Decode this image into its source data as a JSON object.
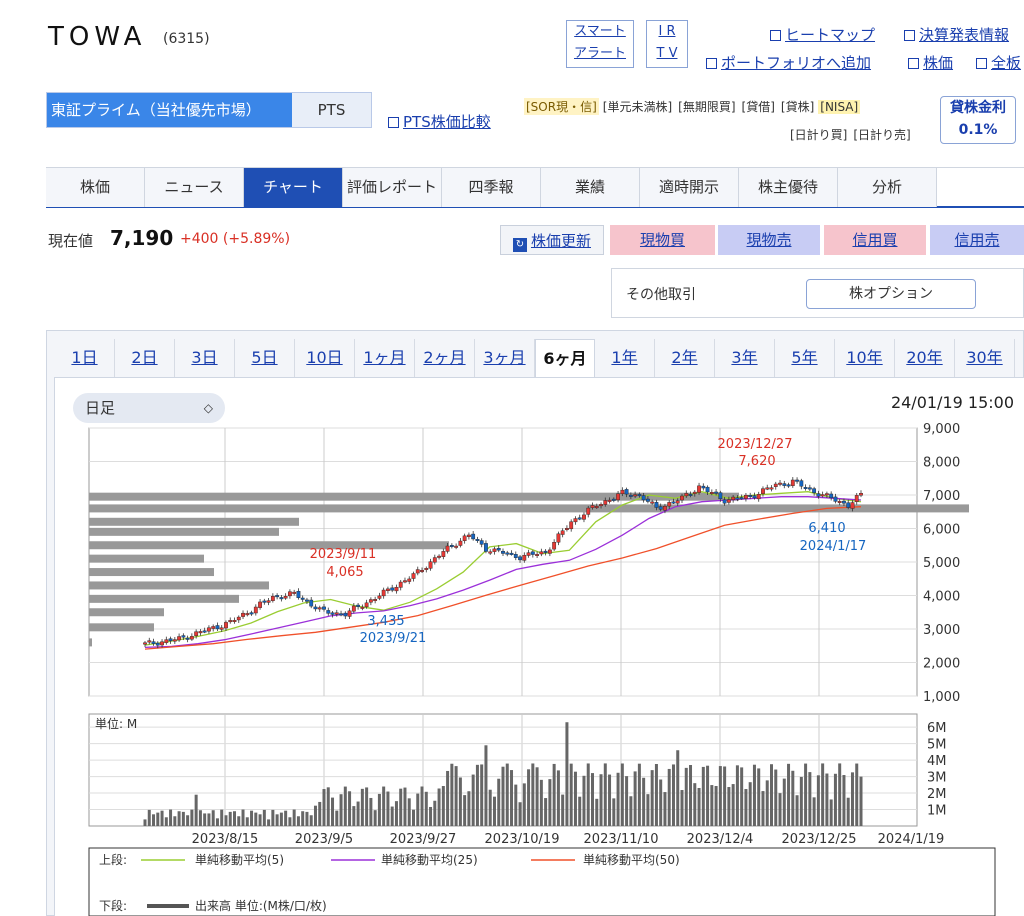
{
  "stock": {
    "name": "TOWA",
    "code": "(6315)"
  },
  "alert": {
    "line1": "スマート",
    "line2": "アラート"
  },
  "irtv": {
    "line1": "I R",
    "line2": "T V"
  },
  "top_links": {
    "heatmap": "ヒートマップ",
    "earnings": "決算発表情報",
    "portfolio": "ポートフォリオへ追加",
    "price": "株価",
    "all": "全板"
  },
  "market_tabs": {
    "primary": "東証プライム（当社優先市場）",
    "pts": "PTS"
  },
  "pts_compare": "PTS株価比較",
  "tags_row1": [
    "[SOR現・信]",
    "[単元未満株]",
    "[無期限買]",
    "[貸借]",
    "[貸株]",
    "[NISA]"
  ],
  "tags_row2": [
    "[日計り買]",
    "[日計り売]"
  ],
  "lend_rate": {
    "label": "貸株金利",
    "value": "0.1%"
  },
  "nav": [
    "株価",
    "ニュース",
    "チャート",
    "評価レポート",
    "四季報",
    "業績",
    "適時開示",
    "株主優待",
    "分析"
  ],
  "price": {
    "label": "現在値",
    "value": "7,190",
    "change": "+400 (+5.89%)"
  },
  "buttons": {
    "refresh": "株価更新",
    "spot_buy": "現物買",
    "spot_sell": "現物売",
    "margin_buy": "信用買",
    "margin_sell": "信用売"
  },
  "other": {
    "label": "その他取引",
    "option": "株オプション"
  },
  "periods": [
    "1日",
    "2日",
    "3日",
    "5日",
    "10日",
    "1ヶ月",
    "2ヶ月",
    "3ヶ月",
    "6ヶ月",
    "1年",
    "2年",
    "3年",
    "5年",
    "10年",
    "20年",
    "30年"
  ],
  "chart_controls": {
    "interval": "日足",
    "datetime": "24/01/19 15:00"
  },
  "colors": {
    "up": "#e53935",
    "down": "#1565c0",
    "ma5": "#9acd32",
    "ma25": "#9b30d9",
    "ma50": "#f0502a",
    "volume": "#666666",
    "profile": "#999999"
  },
  "chart_data": [
    {
      "type": "candlestick",
      "ylim": [
        1000,
        9000
      ],
      "yticks": [
        "9,000",
        "8,000",
        "7,000",
        "6,000",
        "5,000",
        "4,000",
        "3,000",
        "2,000",
        "1,000"
      ],
      "annotations": {
        "high": {
          "date": "2023/12/27",
          "value": "7,620"
        },
        "sep_high": {
          "date": "2023/9/11",
          "value": "4,065"
        },
        "sep_low": {
          "date": "2023/9/21",
          "value": "3,435"
        },
        "recent_low": {
          "date": "2024/1/17",
          "value": "6,410"
        }
      },
      "series": [
        {
          "name": "単純移動平均(5)",
          "values": [
            2520,
            2640,
            2780,
            2950,
            3180,
            3520,
            3780,
            3880,
            3680,
            3560,
            3800,
            4200,
            4700,
            5450,
            5550,
            5250,
            5350,
            6200,
            6700,
            7000,
            6900,
            7100,
            6900,
            7000,
            7050,
            7100,
            6900,
            6800
          ]
        },
        {
          "name": "単純移動平均(25)",
          "values": [
            2450,
            2480,
            2560,
            2680,
            2850,
            3030,
            3210,
            3390,
            3480,
            3540,
            3700,
            3900,
            4160,
            4460,
            4780,
            4930,
            5050,
            5380,
            5800,
            6300,
            6650,
            6800,
            6850,
            6900,
            6950,
            6950,
            6900,
            6850
          ]
        },
        {
          "name": "単純移動平均(50)",
          "values": [
            2400,
            2480,
            2560,
            2690,
            2800,
            2900,
            3050,
            3200,
            3400,
            3700,
            4010,
            4300,
            4590,
            4880,
            5120,
            5400,
            5750,
            6100,
            6280,
            6450,
            6600,
            6650
          ]
        }
      ]
    },
    {
      "type": "bar",
      "ylabel": "単位: M",
      "yticks": [
        "6M",
        "5M",
        "4M",
        "3M",
        "2M",
        "1M"
      ],
      "x": [
        "2023/8/15",
        "2023/9/5",
        "2023/9/27",
        "2023/10/19",
        "2023/11/10",
        "2023/12/4",
        "2023/12/25",
        "2024/1/19"
      ]
    }
  ],
  "legend": {
    "upper_label": "上段:",
    "ma5": "単純移動平均(5)",
    "ma25": "単純移動平均(25)",
    "ma50": "単純移動平均(50)",
    "lower_label": "下段:",
    "volume": "出来高 単位:(M株/口/枚)"
  }
}
